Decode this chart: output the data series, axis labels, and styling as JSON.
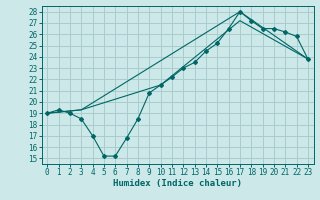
{
  "title": "",
  "xlabel": "Humidex (Indice chaleur)",
  "bg_color": "#cce8e8",
  "grid_color": "#aacccc",
  "line_color": "#006666",
  "xlim": [
    -0.5,
    23.5
  ],
  "ylim": [
    14.5,
    28.5
  ],
  "xticks": [
    0,
    1,
    2,
    3,
    4,
    5,
    6,
    7,
    8,
    9,
    10,
    11,
    12,
    13,
    14,
    15,
    16,
    17,
    18,
    19,
    20,
    21,
    22,
    23
  ],
  "yticks": [
    15,
    16,
    17,
    18,
    19,
    20,
    21,
    22,
    23,
    24,
    25,
    26,
    27,
    28
  ],
  "line1_x": [
    0,
    1,
    2,
    3,
    4,
    5,
    6,
    7,
    8,
    9,
    10,
    11,
    12,
    13,
    14,
    15,
    16,
    17,
    18,
    19,
    20,
    21,
    22,
    23
  ],
  "line1_y": [
    19.0,
    19.3,
    19.0,
    18.5,
    17.0,
    15.2,
    15.2,
    16.8,
    18.5,
    20.8,
    21.5,
    22.2,
    23.0,
    23.5,
    24.5,
    25.2,
    26.5,
    28.0,
    27.2,
    26.5,
    26.5,
    26.2,
    25.8,
    23.8
  ],
  "line2_x": [
    0,
    3,
    17,
    23
  ],
  "line2_y": [
    19.0,
    19.3,
    28.0,
    23.8
  ],
  "line3_x": [
    0,
    3,
    10,
    17,
    23
  ],
  "line3_y": [
    19.0,
    19.3,
    21.5,
    27.2,
    23.8
  ],
  "tick_fontsize": 5.5,
  "label_fontsize": 6.5
}
